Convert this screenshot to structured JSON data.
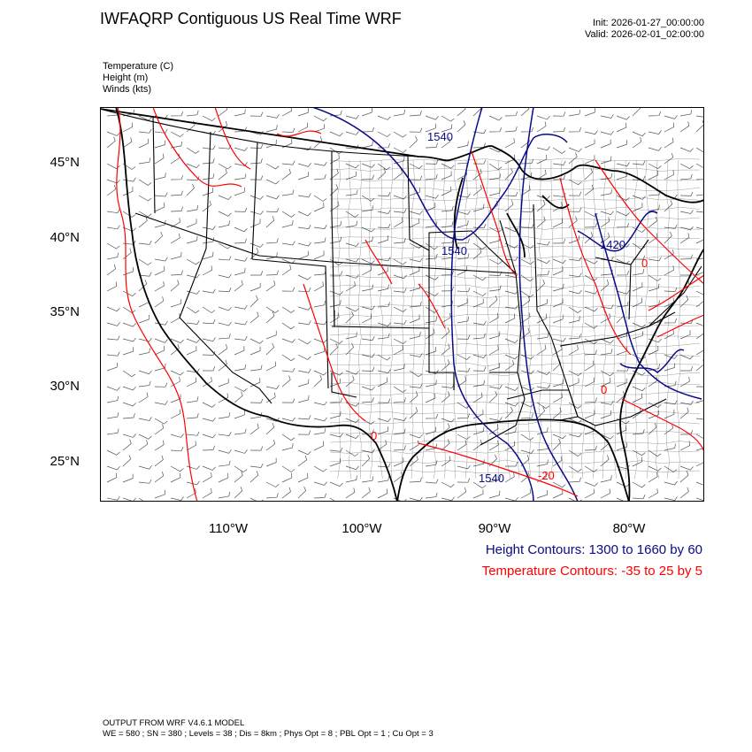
{
  "header": {
    "title": "IWFAQRP Contiguous US Real Time WRF",
    "init": "Init: 2026-01-27_00:00:00",
    "valid": "Valid: 2026-02-01_02:00:00"
  },
  "fields": {
    "temperature": "Temperature   (C)",
    "height": "Height   (m)",
    "winds": "Winds   (kts)"
  },
  "axes": {
    "lat_labels": [
      "45°N",
      "40°N",
      "35°N",
      "30°N",
      "25°N"
    ],
    "lon_labels": [
      "110°W",
      "100°W",
      "90°W",
      "80°W"
    ]
  },
  "contour_labels": {
    "height": [
      "1540",
      "1540",
      "1420",
      "1540"
    ],
    "temperature": [
      "0",
      "0",
      "0",
      "-20"
    ]
  },
  "legend": {
    "height": "Height Contours: 1300 to 1660 by 60",
    "temperature": "Temperature Contours: -35 to 25 by 5"
  },
  "footer": {
    "line1": "OUTPUT FROM WRF V4.6.1 MODEL",
    "line2": "WE = 580 ; SN = 380 ; Levels = 38 ; Dis = 8km ; Phys Opt = 8 ; PBL Opt = 1 ; Cu Opt = 3"
  },
  "colors": {
    "height_contour": "#0a0a8a",
    "temperature_contour": "#ff0000",
    "boundaries": "#000000",
    "wind_barbs": "#555555"
  },
  "icons": {
    "wind_barb": "wind-barb-icon"
  }
}
